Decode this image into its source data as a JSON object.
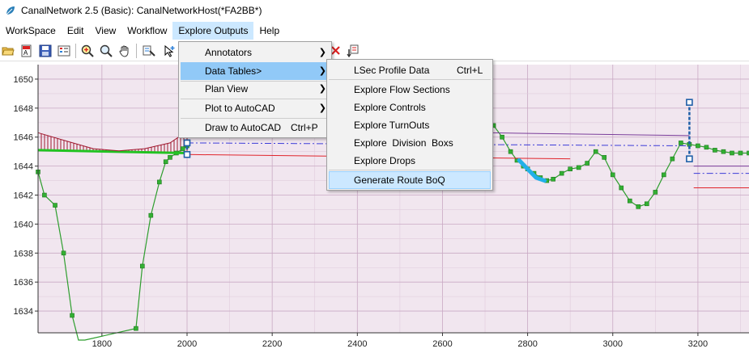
{
  "window": {
    "title": "CanalNetwork 2.5  (Basic): CanalNetworkHost(*FA2BB*)",
    "icon": "leaf-icon",
    "accent": "#2a7fb8"
  },
  "menubar": {
    "items": [
      {
        "label": "WorkSpace",
        "name": "menu-workspace"
      },
      {
        "label": "Edit",
        "name": "menu-edit"
      },
      {
        "label": "View",
        "name": "menu-view"
      },
      {
        "label": "Workflow",
        "name": "menu-workflow"
      },
      {
        "label": "Explore Outputs",
        "name": "menu-explore-outputs"
      },
      {
        "label": "Help",
        "name": "menu-help"
      }
    ],
    "active": "Explore Outputs"
  },
  "toolbar": {
    "buttons": [
      "open-folder-icon",
      "edit-image-icon",
      "save-icon",
      "properties-icon",
      "zoom-in-icon",
      "zoom-region-icon",
      "pan-hand-icon",
      "select-edit-icon",
      "add-point-icon",
      "delete-icon",
      "export-icon"
    ]
  },
  "explore_menu": {
    "items": [
      {
        "label": "Annotators",
        "shortcut": "",
        "submenu": true
      },
      {
        "label": "Data Tables>",
        "shortcut": "",
        "submenu": true,
        "highlighted": true
      },
      {
        "label": "Plan View",
        "shortcut": "",
        "submenu": true
      },
      {
        "label": "Plot to AutoCAD",
        "shortcut": "",
        "submenu": true
      },
      {
        "label": "Draw to AutoCAD",
        "shortcut": "Ctrl+P",
        "submenu": false
      }
    ]
  },
  "data_tables_menu": {
    "items": [
      {
        "label": "LSec Profile Data",
        "shortcut": "Ctrl+L"
      },
      {
        "label": "Explore Flow Sections",
        "shortcut": ""
      },
      {
        "label": "Explore Controls",
        "shortcut": ""
      },
      {
        "label": "Explore TurnOuts",
        "shortcut": ""
      },
      {
        "label": "Explore  Division  Boxs",
        "shortcut": ""
      },
      {
        "label": "Explore Drops",
        "shortcut": ""
      },
      {
        "label": "Generate Route BoQ",
        "shortcut": "",
        "highlighted": true
      }
    ]
  },
  "chart_data": {
    "type": "line",
    "title": "",
    "xlabel": "",
    "ylabel": "",
    "xlim": [
      1650,
      3320
    ],
    "ylim": [
      1632.5,
      1651
    ],
    "x_ticks": [
      1800,
      2000,
      2200,
      2400,
      2600,
      2800,
      3000,
      3200
    ],
    "y_ticks": [
      1634,
      1636,
      1638,
      1640,
      1642,
      1644,
      1646,
      1648,
      1650
    ],
    "grid": true,
    "background": "#f1e6ef",
    "series": [
      {
        "kind": "ground-profile",
        "color": "#2e9e2e",
        "x": [
          1650,
          1665,
          1690,
          1710,
          1730,
          1745,
          1760,
          1880,
          1895,
          1915,
          1935,
          1950,
          1960,
          1975,
          1990,
          2000
        ],
        "y": [
          1643.6,
          1642,
          1641.3,
          1638,
          1633.7,
          1632.0,
          1632.0,
          1632.8,
          1637.1,
          1640.6,
          1642.9,
          1644.3,
          1644.6,
          1644.9,
          1645.2,
          1645.4
        ]
      },
      {
        "kind": "ground-profile",
        "color": "#2e9e2e",
        "x": [
          2700,
          2720,
          2740,
          2760,
          2775,
          2790,
          2800,
          2815,
          2830,
          2845,
          2860,
          2880,
          2900,
          2920,
          2940,
          2960,
          2980,
          3000,
          3020,
          3040,
          3060,
          3080,
          3100,
          3120,
          3140,
          3160,
          3180,
          3200,
          3220,
          3240,
          3260,
          3280,
          3300,
          3320
        ],
        "y": [
          1646.5,
          1646.8,
          1646,
          1645,
          1644.4,
          1644.0,
          1643.8,
          1643.5,
          1643.2,
          1643.0,
          1643.1,
          1643.5,
          1643.8,
          1643.9,
          1644.2,
          1645.0,
          1644.6,
          1643.4,
          1642.5,
          1641.6,
          1641.2,
          1641.4,
          1642.2,
          1643.4,
          1644.5,
          1645.6,
          1645.5,
          1645.4,
          1645.3,
          1645.1,
          1645.0,
          1644.9,
          1644.9,
          1644.9
        ]
      },
      {
        "kind": "bed-level",
        "color": "#e0242b",
        "x": [
          2000,
          2900
        ],
        "y": [
          1644.8,
          1644.5
        ]
      },
      {
        "kind": "bed-level",
        "color": "#e0242b",
        "x": [
          3190,
          3320
        ],
        "y": [
          1642.5,
          1642.5
        ]
      },
      {
        "kind": "water-level",
        "color": "#3c3cd8",
        "x": [
          2000,
          3180
        ],
        "y": [
          1645.6,
          1645.4
        ]
      },
      {
        "kind": "water-level",
        "color": "#3c3cd8",
        "x": [
          3190,
          3320
        ],
        "y": [
          1643.5,
          1643.5
        ]
      },
      {
        "kind": "bank-level",
        "color": "#7a3d9a",
        "x": [
          2700,
          3180
        ],
        "y": [
          1646.3,
          1646.1
        ]
      },
      {
        "kind": "bank-level",
        "color": "#7a3d9a",
        "x": [
          3190,
          3320
        ],
        "y": [
          1644,
          1644
        ]
      },
      {
        "kind": "bank-start",
        "color": "#22c322",
        "x": [
          1650,
          2000
        ],
        "y": [
          1645.1,
          1644.9
        ]
      },
      {
        "kind": "cut-arc",
        "color": "#a0192f",
        "x": [
          1650,
          1720,
          1780,
          1840,
          1900,
          1960,
          2000
        ],
        "y": [
          1646.3,
          1645.7,
          1645.2,
          1645.05,
          1645.2,
          1645.6,
          1646.4
        ]
      },
      {
        "kind": "selected-segment",
        "color": "#22b0e8",
        "x": [
          2780,
          2800,
          2820,
          2840
        ],
        "y": [
          1644.4,
          1643.8,
          1643.2,
          1643.0
        ]
      },
      {
        "kind": "structure-marker",
        "color": "#1f5fa8",
        "x": [
          3180,
          3180
        ],
        "y": [
          1644.5,
          1648.4
        ]
      },
      {
        "kind": "structure-marker",
        "color": "#1f5fa8",
        "x": [
          2000,
          2000
        ],
        "y": [
          1644.8,
          1645.6
        ]
      }
    ]
  }
}
